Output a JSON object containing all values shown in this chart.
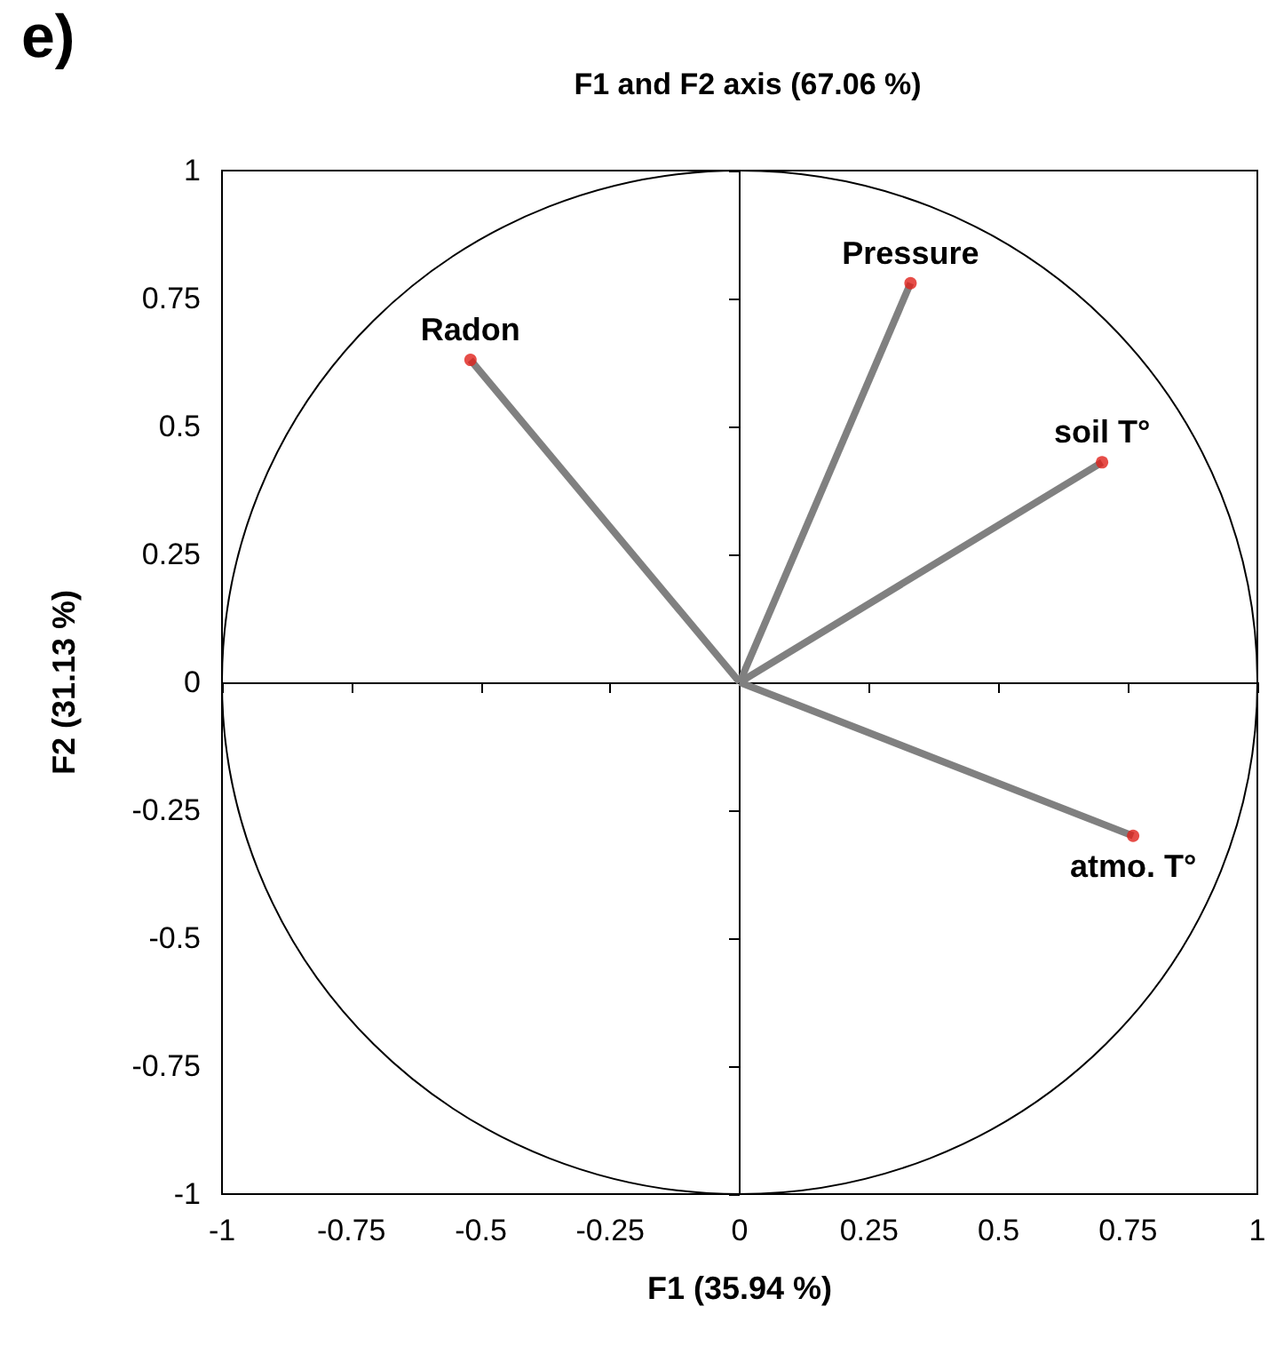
{
  "chart_data": {
    "type": "line",
    "title": "F1 and F2 axis (67.06 %)",
    "xlabel": "F1 (35.94 %)",
    "ylabel": "F2 (31.13 %)",
    "annotations": [
      "e)"
    ],
    "xlim": [
      -1,
      1
    ],
    "xticks": [
      -1,
      -0.75,
      -0.5,
      -0.25,
      0,
      0.25,
      0.5,
      0.75,
      1
    ],
    "ylim": [
      -1,
      1
    ],
    "yticks": [
      -1,
      -0.75,
      -0.5,
      -0.25,
      0,
      0.25,
      0.5,
      0.75,
      1
    ],
    "legend": false,
    "series": [
      {
        "name": "Radon",
        "color": "#808080",
        "x": [
          0,
          -0.52
        ],
        "values": [
          0,
          0.63
        ]
      },
      {
        "name": "Pressure",
        "color": "#808080",
        "x": [
          0,
          0.33
        ],
        "values": [
          0,
          0.78
        ]
      },
      {
        "name": "soil T°",
        "color": "#808080",
        "x": [
          0,
          0.7
        ],
        "values": [
          0,
          0.43
        ]
      },
      {
        "name": "atmo. T°",
        "color": "#808080",
        "x": [
          0,
          0.76
        ],
        "values": [
          0,
          -0.3
        ]
      },
      {
        "type": "scatter",
        "marker": "circle",
        "color": "#e0201a",
        "x": [
          -0.52,
          0.33,
          0.7,
          0.76
        ],
        "values": [
          0.63,
          0.78,
          0.43,
          -0.3
        ]
      }
    ]
  }
}
